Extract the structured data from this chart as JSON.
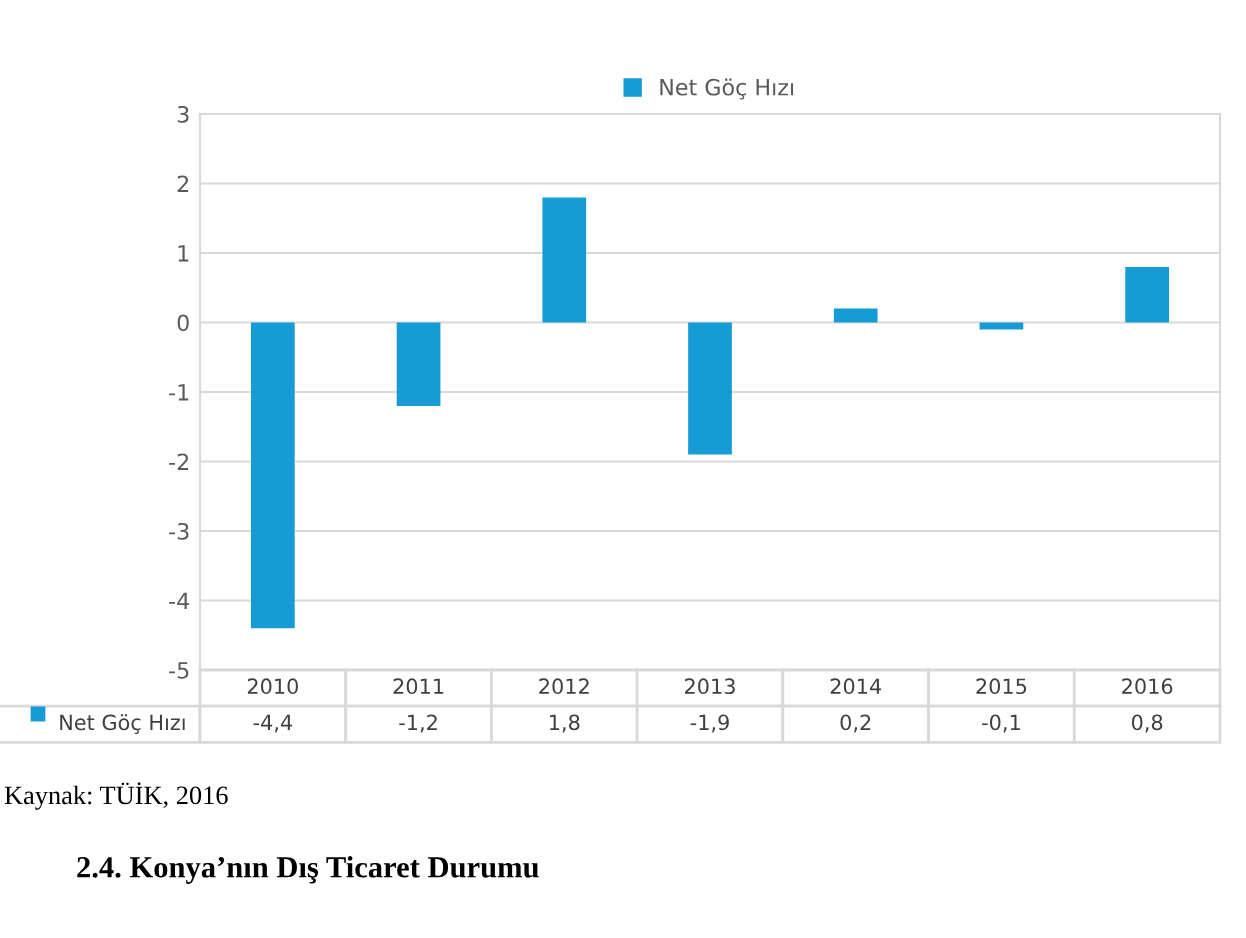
{
  "chart_data": {
    "type": "bar",
    "categories": [
      "2010",
      "2011",
      "2012",
      "2013",
      "2014",
      "2015",
      "2016"
    ],
    "series": [
      {
        "name": "Net Göç Hızı",
        "color": "#169bd5",
        "values": [
          -4.4,
          -1.2,
          1.8,
          -1.9,
          0.2,
          -0.1,
          0.8
        ],
        "value_labels": [
          "-4,4",
          "-1,2",
          "1,8",
          "-1,9",
          "0,2",
          "-0,1",
          "0,8"
        ]
      }
    ],
    "ylim": [
      -5,
      3
    ],
    "yticks": [
      -5,
      -4,
      -3,
      -2,
      -1,
      0,
      1,
      2,
      3
    ],
    "grid": "y",
    "legend": "top",
    "annotations": [
      "Kaynak: TÜİK, 2016",
      "2.4. Konya’nın Dış Ticaret Durumu"
    ]
  }
}
